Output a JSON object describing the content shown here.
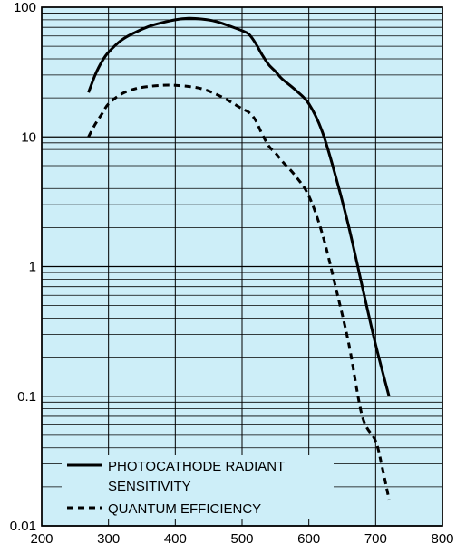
{
  "chart_data": {
    "type": "line",
    "title": "",
    "xlabel": "",
    "ylabel": "",
    "xlim": [
      200,
      800
    ],
    "ylim": [
      0.01,
      100
    ],
    "yscale": "log",
    "grid": true,
    "background_color": "#cdeef8",
    "legend_position": "bottom-left",
    "x_ticks": [
      {
        "value": 200,
        "label": "200"
      },
      {
        "value": 300,
        "label": "300"
      },
      {
        "value": 400,
        "label": "400"
      },
      {
        "value": 500,
        "label": "500"
      },
      {
        "value": 600,
        "label": "600"
      },
      {
        "value": 700,
        "label": "700"
      },
      {
        "value": 800,
        "label": "800"
      }
    ],
    "y_ticks": [
      {
        "value": 100,
        "label": "100"
      },
      {
        "value": 10,
        "label": "10"
      },
      {
        "value": 1,
        "label": "1"
      },
      {
        "value": 0.1,
        "label": "0.1"
      },
      {
        "value": 0.01,
        "label": "0.01"
      }
    ],
    "series": [
      {
        "name": "PHOTOCATHODE RADIANT",
        "name_line2": "SENSITIVITY",
        "style": "solid",
        "x": [
          270,
          280,
          290,
          300,
          320,
          340,
          360,
          380,
          400,
          420,
          440,
          460,
          480,
          500,
          510,
          520,
          530,
          540,
          550,
          560,
          580,
          600,
          620,
          640,
          660,
          680,
          700,
          720
        ],
        "y": [
          22,
          30,
          38,
          45,
          56,
          64,
          71,
          76,
          80,
          82,
          81,
          78,
          72,
          66,
          62,
          53,
          43,
          36,
          32,
          28,
          23,
          18,
          11,
          5,
          2,
          0.7,
          0.25,
          0.1
        ]
      },
      {
        "name": "QUANTUM EFFICIENCY",
        "style": "dashed",
        "x": [
          270,
          280,
          290,
          300,
          320,
          340,
          360,
          380,
          400,
          420,
          440,
          460,
          480,
          500,
          510,
          520,
          530,
          540,
          550,
          560,
          580,
          600,
          620,
          640,
          660,
          680,
          700,
          710,
          720
        ],
        "y": [
          10,
          12.5,
          15,
          18,
          21.5,
          23.5,
          24.5,
          25,
          25,
          24.5,
          23.5,
          21.5,
          19,
          16.5,
          15.5,
          13.5,
          10.5,
          8.5,
          7.5,
          6.5,
          5,
          3.5,
          1.8,
          0.7,
          0.25,
          0.07,
          0.045,
          0.028,
          0.016
        ]
      }
    ]
  }
}
